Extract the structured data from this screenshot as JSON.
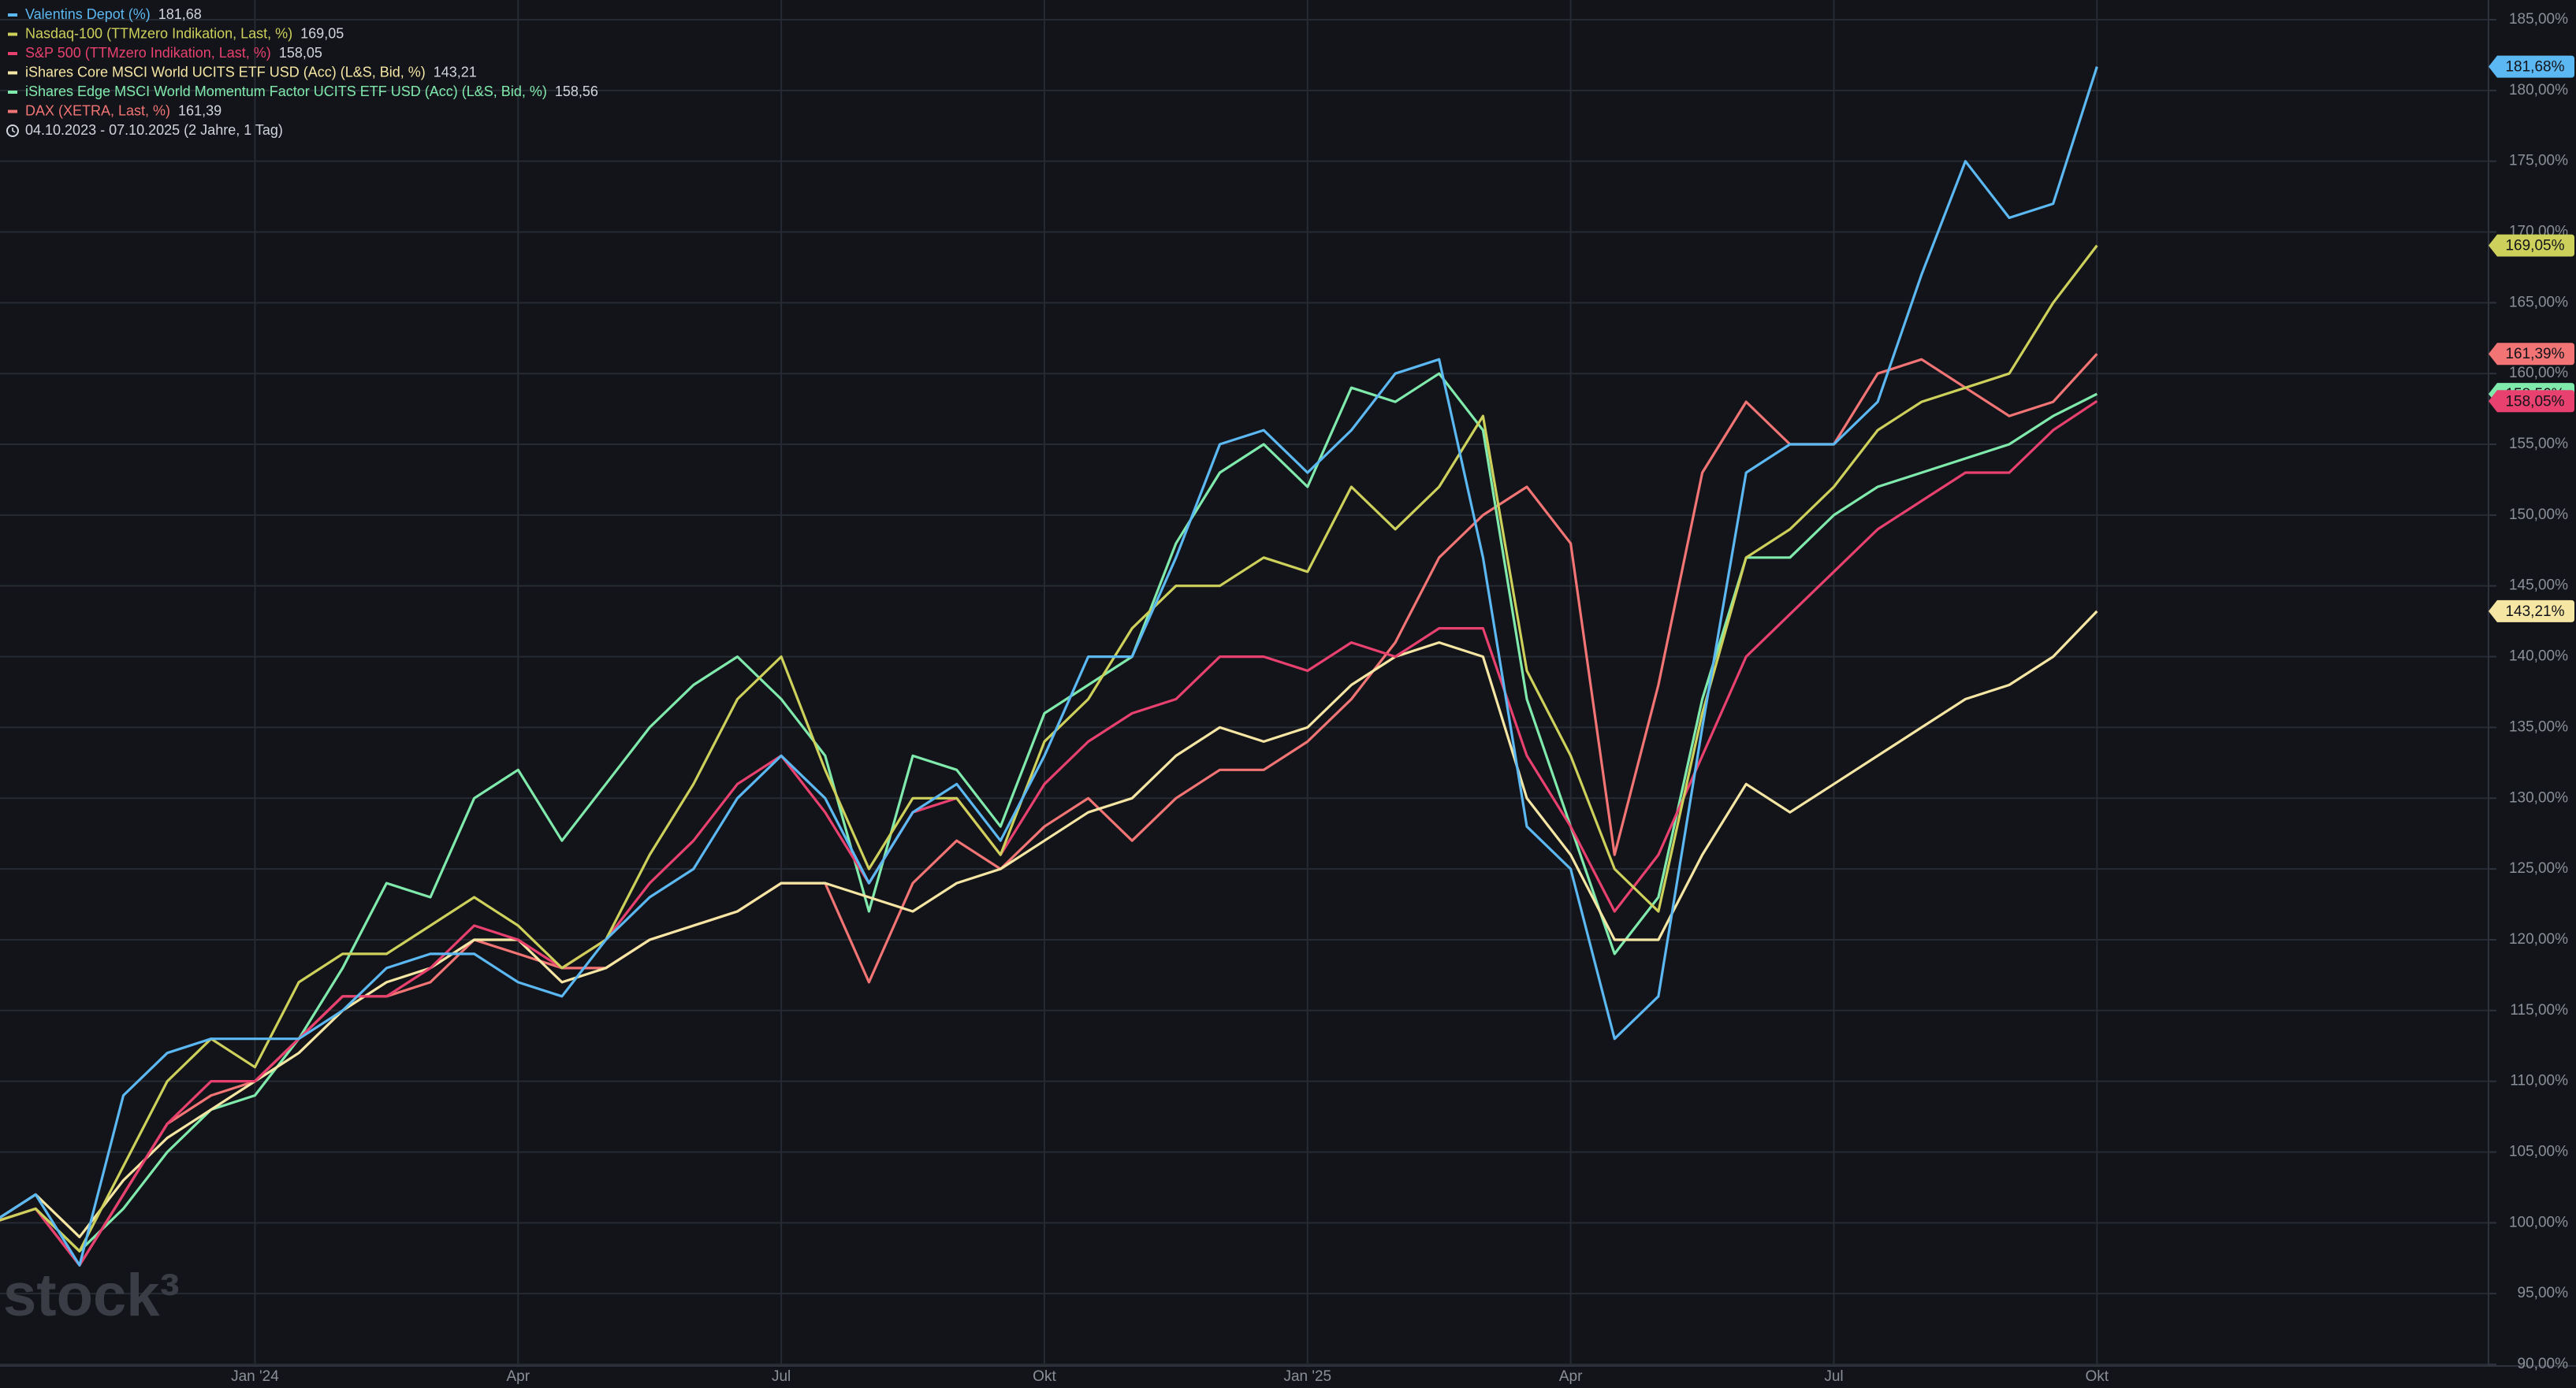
{
  "chart_data": {
    "type": "line",
    "date_range": "04.10.2023 - 07.10.2025  (2 Jahre, 1 Tag)",
    "watermark": "stock³",
    "categories": [
      null,
      null,
      null,
      null,
      null,
      null,
      "Jan '24",
      null,
      null,
      null,
      null,
      null,
      "Apr",
      null,
      null,
      null,
      null,
      null,
      "Jul",
      null,
      null,
      null,
      null,
      null,
      "Okt",
      null,
      null,
      null,
      null,
      null,
      "Jan '25",
      null,
      null,
      null,
      null,
      null,
      "Apr",
      null,
      null,
      null,
      null,
      null,
      "Jul",
      null,
      null,
      null,
      null,
      null,
      "Okt"
    ],
    "ylim": [
      89.89,
      186.39
    ],
    "yticks": [
      {
        "value": 90,
        "label": "90,00%"
      },
      {
        "value": 95,
        "label": "95,00%"
      },
      {
        "value": 100,
        "label": "100,00%"
      },
      {
        "value": 105,
        "label": "105,00%"
      },
      {
        "value": 110,
        "label": "110,00%"
      },
      {
        "value": 115,
        "label": "115,00%"
      },
      {
        "value": 120,
        "label": "120,00%"
      },
      {
        "value": 125,
        "label": "125,00%"
      },
      {
        "value": 130,
        "label": "130,00%"
      },
      {
        "value": 135,
        "label": "135,00%"
      },
      {
        "value": 140,
        "label": "140,00%"
      },
      {
        "value": 145,
        "label": "145,00%"
      },
      {
        "value": 150,
        "label": "150,00%"
      },
      {
        "value": 155,
        "label": "155,00%"
      },
      {
        "value": 160,
        "label": "160,00%"
      },
      {
        "value": 165,
        "label": "165,00%"
      },
      {
        "value": 170,
        "label": "170,00%"
      },
      {
        "value": 175,
        "label": "175,00%"
      },
      {
        "value": 180,
        "label": "180,00%"
      },
      {
        "value": 185,
        "label": "185,00%"
      }
    ],
    "grid": true,
    "series": [
      {
        "name": "Valentins Depot (%)",
        "legend_value": "181,68",
        "axis_tag": "181,68%",
        "color": "#5cb8f2",
        "values": [
          100,
          102,
          97,
          109,
          112,
          113,
          113,
          113,
          115,
          118,
          119,
          119,
          117,
          116,
          120,
          123,
          125,
          130,
          133,
          130,
          124,
          129,
          131,
          127,
          133,
          140,
          140,
          147,
          155,
          156,
          153,
          156,
          160,
          161,
          147,
          128,
          125,
          113,
          116,
          135,
          153,
          155,
          155,
          158,
          167,
          175,
          171,
          172,
          181.68
        ]
      },
      {
        "name": "Nasdaq-100 (TTMzero Indikation, Last, %)",
        "legend_value": "169,05",
        "axis_tag": "169,05%",
        "color": "#cdd05a",
        "values": [
          100,
          101,
          98,
          104,
          110,
          113,
          111,
          117,
          119,
          119,
          121,
          123,
          121,
          118,
          120,
          126,
          131,
          137,
          140,
          132,
          125,
          130,
          130,
          126,
          134,
          137,
          142,
          145,
          145,
          147,
          146,
          152,
          149,
          152,
          157,
          139,
          133,
          125,
          122,
          136,
          147,
          149,
          152,
          156,
          158,
          159,
          160,
          165,
          169.05
        ]
      },
      {
        "name": "S&P 500 (TTMzero Indikation, Last, %)",
        "legend_value": "158,05",
        "axis_tag": "158,05%",
        "color": "#e8416f",
        "values": [
          100,
          101,
          97,
          102,
          107,
          110,
          110,
          113,
          116,
          116,
          118,
          121,
          120,
          118,
          120,
          124,
          127,
          131,
          133,
          129,
          124,
          129,
          130,
          126,
          131,
          134,
          136,
          137,
          140,
          140,
          139,
          141,
          140,
          142,
          142,
          133,
          128,
          122,
          126,
          133,
          140,
          143,
          146,
          149,
          151,
          153,
          153,
          156,
          158.05
        ]
      },
      {
        "name": "iShares Core MSCI World UCITS ETF USD (Acc) (L&S, Bid, %)",
        "legend_value": "143,21",
        "axis_tag": "143,21%",
        "color": "#f6e6a4",
        "values": [
          100,
          102,
          99,
          103,
          106,
          108,
          110,
          112,
          115,
          117,
          118,
          120,
          120,
          117,
          118,
          120,
          121,
          122,
          124,
          124,
          123,
          122,
          124,
          125,
          127,
          129,
          130,
          133,
          135,
          134,
          135,
          138,
          140,
          141,
          140,
          130,
          126,
          120,
          120,
          126,
          131,
          129,
          131,
          133,
          135,
          137,
          138,
          140,
          143.21
        ]
      },
      {
        "name": "iShares Edge MSCI World Momentum Factor UCITS ETF USD (Acc) (L&S, Bid, %)",
        "legend_value": "158,56",
        "axis_tag": "158,56%",
        "color": "#80eaad",
        "values": [
          100,
          101,
          98,
          101,
          105,
          108,
          109,
          113,
          118,
          124,
          123,
          130,
          132,
          127,
          131,
          135,
          138,
          140,
          137,
          133,
          122,
          133,
          132,
          128,
          136,
          138,
          140,
          148,
          153,
          155,
          152,
          159,
          158,
          160,
          156,
          137,
          128,
          119,
          123,
          137,
          147,
          147,
          150,
          152,
          153,
          154,
          155,
          157,
          158.56
        ]
      },
      {
        "name": "DAX (XETRA, Last, %)",
        "legend_value": "161,39",
        "axis_tag": "161,39%",
        "color": "#f27474",
        "values": [
          100,
          101,
          97,
          102,
          107,
          109,
          110,
          113,
          116,
          116,
          117,
          120,
          119,
          118,
          118,
          120,
          121,
          122,
          124,
          124,
          117,
          124,
          127,
          125,
          128,
          130,
          127,
          130,
          132,
          132,
          134,
          137,
          141,
          147,
          150,
          152,
          148,
          126,
          138,
          153,
          158,
          155,
          155,
          160,
          161,
          159,
          157,
          158,
          161.39
        ]
      }
    ]
  }
}
